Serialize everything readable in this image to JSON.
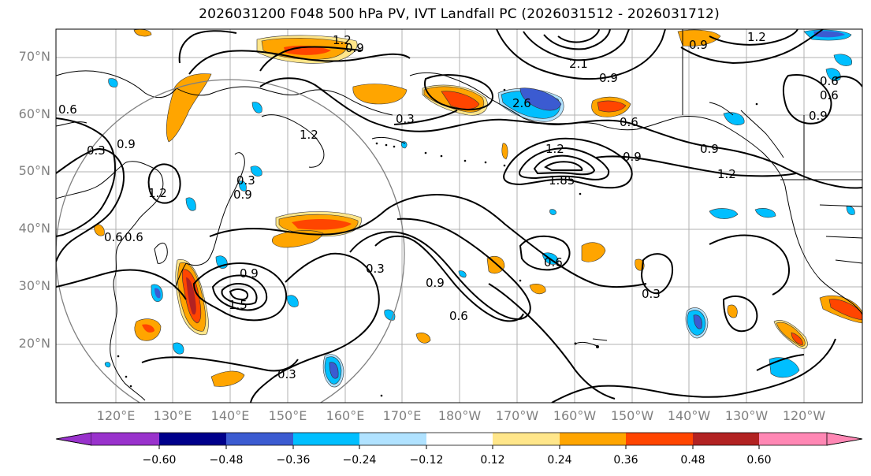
{
  "title": "2026031200 F048 500 hPa PV, IVT Landfall PC (2026031512 - 2026031712)",
  "lat_labels": [
    "70°N",
    "60°N",
    "50°N",
    "40°N",
    "30°N",
    "20°N"
  ],
  "lon_labels": [
    "120°E",
    "130°E",
    "140°E",
    "150°E",
    "160°E",
    "170°E",
    "180°W",
    "170°W",
    "160°W",
    "150°W",
    "140°W",
    "130°W",
    "120°W"
  ],
  "colorbar": {
    "ticks": [
      "−0.60",
      "−0.48",
      "−0.36",
      "−0.24",
      "−0.12",
      "0.12",
      "0.24",
      "0.36",
      "0.48",
      "0.60"
    ],
    "colors": [
      "#9932cc",
      "#00008b",
      "#3b5bd1",
      "#00bfff",
      "#b0e2ff",
      "#ffffff",
      "#ffe68a",
      "#ffa500",
      "#ff4500",
      "#b22222",
      "#ff87b4"
    ]
  },
  "contour_labels": [
    "1.2",
    "0.9",
    "0.6",
    "0.3",
    "0.9",
    "1.2",
    "0.6",
    "0.3",
    "0.9",
    "1.2",
    "1.5",
    "0.9",
    "0.6",
    "0.3",
    "0.9",
    "0.6",
    "0.3",
    "0.6",
    "0.3",
    "0.9",
    "1.2",
    "1.85",
    "2.1",
    "2.6",
    "0.9",
    "0.6",
    "0.9",
    "1.2",
    "0.9",
    "1.2",
    "0.6",
    "0.3",
    "0.9",
    "0.6"
  ],
  "colors": {
    "contour": "#000000",
    "grid": "#b0b0b0",
    "coast": "#000000",
    "circle": "#808080",
    "axis_text": "#808080"
  }
}
